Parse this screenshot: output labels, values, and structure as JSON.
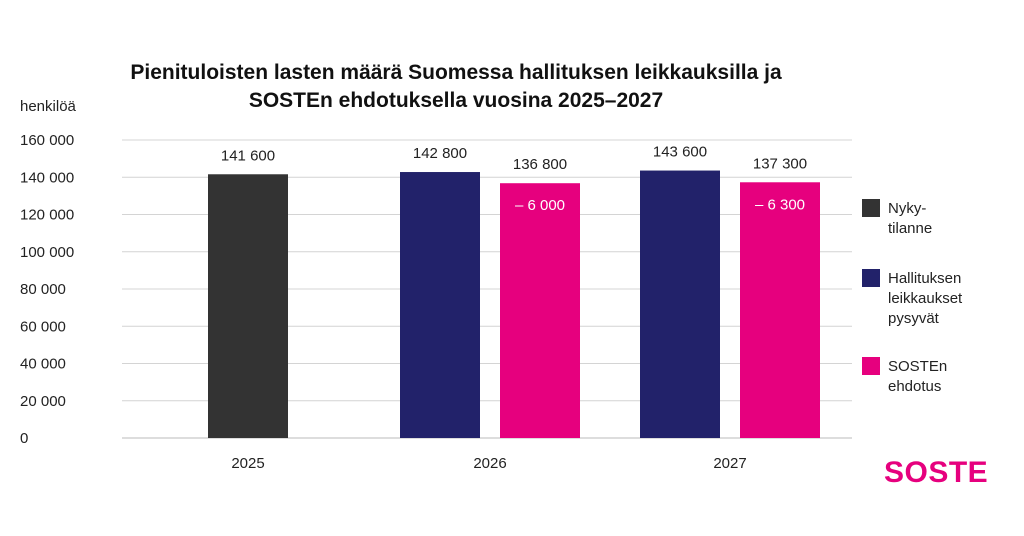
{
  "chart_data": {
    "type": "bar",
    "title_lines": [
      "Pienituloisten lasten määrä Suomessa hallituksen leikkauksilla ja",
      "SOSTEn ehdotuksella vuosina 2025–2027"
    ],
    "ylabel": "henkilöä",
    "ylim": [
      0,
      160000
    ],
    "yticks": [
      0,
      20000,
      40000,
      60000,
      80000,
      100000,
      120000,
      140000,
      160000
    ],
    "ytick_labels": [
      "0",
      "20 000",
      "40 000",
      "60 000",
      "80 000",
      "100 000",
      "120 000",
      "140 000",
      "160 000"
    ],
    "grid": true,
    "legend_position": "right",
    "categories": [
      "2025",
      "2026",
      "2027"
    ],
    "bars": [
      {
        "category": "2025",
        "series": "Nyky-tilanne",
        "value": 141600,
        "label": "141 600"
      },
      {
        "category": "2026",
        "series": "Hallituksen leikkaukset pysyvät",
        "value": 142800,
        "label": "142 800"
      },
      {
        "category": "2026",
        "series": "SOSTEn ehdotus",
        "value": 136800,
        "label": "136 800",
        "inner_label": "– 6 000"
      },
      {
        "category": "2027",
        "series": "Hallituksen leikkaukset pysyvät",
        "value": 143600,
        "label": "143 600"
      },
      {
        "category": "2027",
        "series": "SOSTEn ehdotus",
        "value": 137300,
        "label": "137 300",
        "inner_label": "– 6 300"
      }
    ],
    "series": [
      {
        "name": "Nyky-tilanne",
        "legend_lines": [
          "Nyky-",
          "tilanne"
        ],
        "color": "#333333"
      },
      {
        "name": "Hallituksen leikkaukset pysyvät",
        "legend_lines": [
          "Hallituksen",
          "leikkaukset",
          "pysyvät"
        ],
        "color": "#22226a"
      },
      {
        "name": "SOSTEn ehdotus",
        "legend_lines": [
          "SOSTEn",
          "ehdotus"
        ],
        "color": "#e6007e"
      }
    ]
  },
  "logo": {
    "text": "SOSTE",
    "color": "#e6007e"
  },
  "colors": {
    "gridline": "#d4d4d4",
    "axis": "#bbbbbb"
  }
}
